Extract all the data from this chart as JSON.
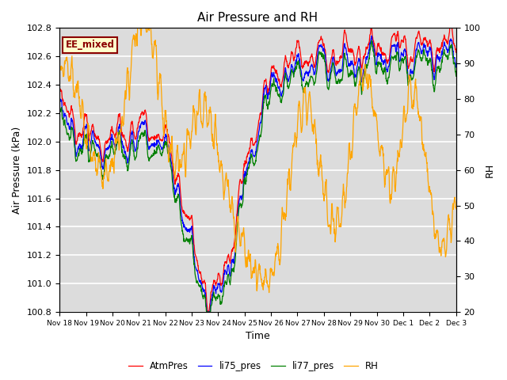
{
  "title": "Air Pressure and RH",
  "xlabel": "Time",
  "ylabel_left": "Air Pressure (kPa)",
  "ylabel_right": "RH",
  "ylim_left": [
    100.8,
    102.8
  ],
  "ylim_right": [
    20,
    100
  ],
  "yticks_left": [
    100.8,
    101.0,
    101.2,
    101.4,
    101.6,
    101.8,
    102.0,
    102.2,
    102.4,
    102.6,
    102.8
  ],
  "yticks_right": [
    20,
    30,
    40,
    50,
    60,
    70,
    80,
    90,
    100
  ],
  "xtick_labels": [
    "Nov 18",
    "Nov 19",
    "Nov 20",
    "Nov 21",
    "Nov 22",
    "Nov 23",
    "Nov 24",
    "Nov 25",
    "Nov 26",
    "Nov 27",
    "Nov 28",
    "Nov 29",
    "Nov 30",
    "Dec 1",
    "Dec 2",
    "Dec 3"
  ],
  "legend_labels": [
    "AtmPres",
    "li75_pres",
    "li77_pres",
    "RH"
  ],
  "line_colors": [
    "red",
    "blue",
    "green",
    "orange"
  ],
  "annotation_text": "EE_mixed",
  "annotation_color": "#8B0000",
  "annotation_bg": "#FFFFCC",
  "bg_color": "#DCDCDC",
  "grid_color": "white",
  "title_fontsize": 11,
  "tick_fontsize": 8,
  "label_fontsize": 9
}
